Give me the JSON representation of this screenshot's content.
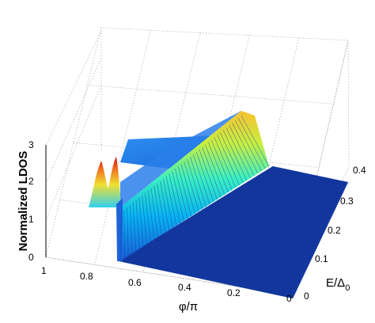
{
  "chart_data": {
    "type": "surface3d",
    "xlabel": "φ/π",
    "ylabel": "E/Δ",
    "ylabel_sub": "0",
    "zlabel": "Normalized LDOS",
    "xlim": [
      0,
      1
    ],
    "ylim": [
      0,
      0.4
    ],
    "zlim": [
      0,
      3
    ],
    "x_ticks": [
      "1",
      "0.8",
      "0.6",
      "0.4",
      "0.2",
      "0"
    ],
    "y_ticks": [
      "0",
      "0.1",
      "0.2",
      "0.3",
      "0.4"
    ],
    "z_ticks": [
      "0",
      "1",
      "2",
      "3"
    ],
    "colormap": "jet",
    "grid": true,
    "features": {
      "gap_boundary_phi": 0.68,
      "ridge": [
        {
          "phi": 0.68,
          "E": 0.02,
          "ldos": 0.9
        },
        {
          "phi": 0.4,
          "E": 0.21,
          "ldos": 1.7
        },
        {
          "phi": 0.2,
          "E": 0.33,
          "ldos": 2.4
        },
        {
          "phi": 0.03,
          "E": 0.39,
          "ldos": 2.6
        }
      ],
      "plateau_ldos": 1.0,
      "edge_peaks": [
        {
          "phi": 0.8,
          "E": 0.03,
          "ldos": 2.6
        },
        {
          "phi": 0.75,
          "E": 0.1,
          "ldos": 2.7
        }
      ],
      "flat_ldos": 0.05
    }
  }
}
